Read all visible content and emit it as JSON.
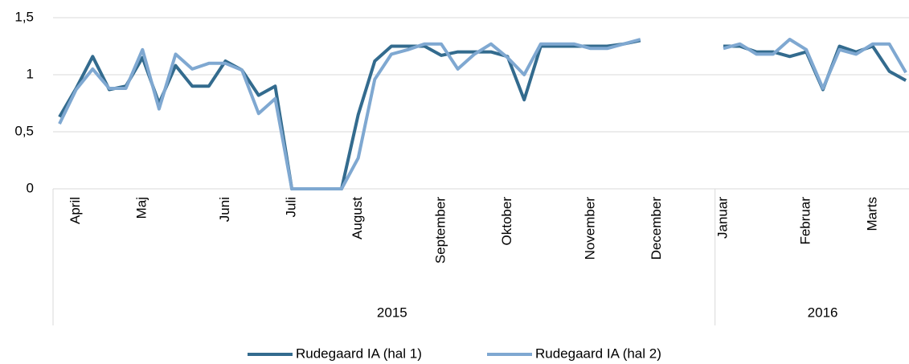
{
  "chart_data": {
    "type": "line",
    "categories": [
      null,
      "April",
      null,
      null,
      null,
      "Maj",
      null,
      null,
      null,
      null,
      "Juni",
      null,
      null,
      null,
      "Juli",
      null,
      null,
      null,
      "August",
      null,
      null,
      null,
      null,
      "September",
      null,
      null,
      null,
      "Oktober",
      null,
      null,
      null,
      null,
      "November",
      null,
      null,
      null,
      "December",
      null,
      null,
      null,
      "Januar",
      null,
      null,
      null,
      null,
      "Februar",
      null,
      null,
      null,
      "Marts",
      null,
      null
    ],
    "groups": [
      {
        "name": "2015",
        "count": 40
      },
      {
        "name": "2016",
        "count": 12
      }
    ],
    "series": [
      {
        "name": "Rudegaard IA (hal 1)",
        "color": "#336b8e",
        "values": [
          0.63,
          0.88,
          1.16,
          0.87,
          0.9,
          1.15,
          0.75,
          1.08,
          0.9,
          0.9,
          1.12,
          1.04,
          0.82,
          0.9,
          0,
          0,
          0,
          0,
          0.65,
          1.12,
          1.25,
          1.25,
          1.25,
          1.17,
          1.2,
          1.2,
          1.2,
          1.16,
          0.78,
          1.25,
          1.25,
          1.25,
          1.25,
          1.25,
          1.27,
          1.3,
          null,
          null,
          null,
          null,
          1.25,
          1.25,
          1.2,
          1.2,
          1.16,
          1.2,
          0.87,
          1.25,
          1.2,
          1.25,
          1.03,
          0.95
        ]
      },
      {
        "name": "Rudegaard IA (hal 2)",
        "color": "#7fa8d1",
        "values": [
          0.57,
          0.87,
          1.05,
          0.88,
          0.88,
          1.22,
          0.7,
          1.18,
          1.05,
          1.1,
          1.1,
          1.04,
          0.66,
          0.79,
          0,
          0,
          0,
          0,
          0.27,
          0.96,
          1.18,
          1.22,
          1.27,
          1.27,
          1.05,
          1.18,
          1.27,
          1.15,
          1.0,
          1.27,
          1.27,
          1.27,
          1.23,
          1.23,
          1.27,
          1.31,
          null,
          null,
          null,
          null,
          1.23,
          1.27,
          1.18,
          1.18,
          1.31,
          1.22,
          0.88,
          1.22,
          1.18,
          1.27,
          1.27,
          1.02
        ]
      }
    ],
    "ylim": [
      0,
      1.5
    ],
    "yticks": [
      0,
      {
        "value": 0.5,
        "label": "0,5"
      },
      1,
      {
        "value": 1.5,
        "label": "1,5"
      }
    ],
    "grid": true,
    "legend": "bottom"
  }
}
